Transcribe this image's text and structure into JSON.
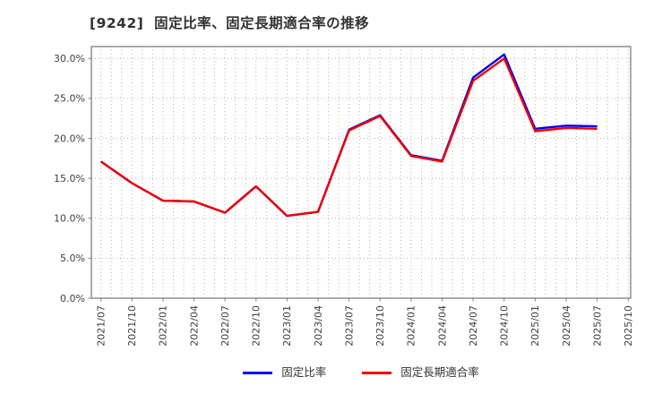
{
  "title": "[9242]  固定比率、固定長期適合率の推移",
  "chart_data": {
    "type": "line",
    "title": "[9242]  固定比率、固定長期適合率の推移",
    "xlabel": "",
    "ylabel": "",
    "categories": [
      "2021/07",
      "2021/10",
      "2022/01",
      "2022/04",
      "2022/07",
      "2022/10",
      "2023/01",
      "2023/04",
      "2023/07",
      "2023/10",
      "2024/01",
      "2024/04",
      "2024/07",
      "2024/10",
      "2025/01",
      "2025/04",
      "2025/07"
    ],
    "x_axis_tick_labels": [
      "2021/07",
      "2021/10",
      "2022/01",
      "2022/04",
      "2022/07",
      "2022/10",
      "2023/01",
      "2023/04",
      "2023/07",
      "2023/10",
      "2024/01",
      "2024/04",
      "2024/07",
      "2024/10",
      "2025/01",
      "2025/04",
      "2025/07",
      "2025/10"
    ],
    "series": [
      {
        "name": "固定比率",
        "color": "#0000ee",
        "values": [
          17.1,
          14.4,
          12.2,
          12.1,
          10.7,
          14.0,
          10.3,
          10.8,
          21.1,
          22.9,
          17.9,
          17.2,
          27.6,
          30.5,
          21.2,
          21.6,
          21.5
        ]
      },
      {
        "name": "固定長期適合率",
        "color": "#ee0000",
        "values": [
          17.1,
          14.4,
          12.2,
          12.1,
          10.7,
          14.0,
          10.3,
          10.8,
          21.0,
          22.8,
          17.8,
          17.1,
          27.2,
          30.0,
          20.9,
          21.3,
          21.2
        ]
      }
    ],
    "y_ticks": [
      {
        "value": 0,
        "label": "0.0%"
      },
      {
        "value": 5,
        "label": "5.0%"
      },
      {
        "value": 10,
        "label": "10.0%"
      },
      {
        "value": 15,
        "label": "15.0%"
      },
      {
        "value": 20,
        "label": "20.0%"
      },
      {
        "value": 25,
        "label": "25.0%"
      },
      {
        "value": 30,
        "label": "30.0%"
      }
    ],
    "ylim": [
      0,
      31.5
    ],
    "grid": true,
    "grid_style": "dotted, monthly vertical lines, 5% horizontal lines",
    "legend_position": "bottom-center",
    "colors": {
      "plot_border": "#808080",
      "grid_line": "#b5b5b5",
      "tick_label": "#404040",
      "title_text": "#333333",
      "background": "#ffffff"
    }
  }
}
